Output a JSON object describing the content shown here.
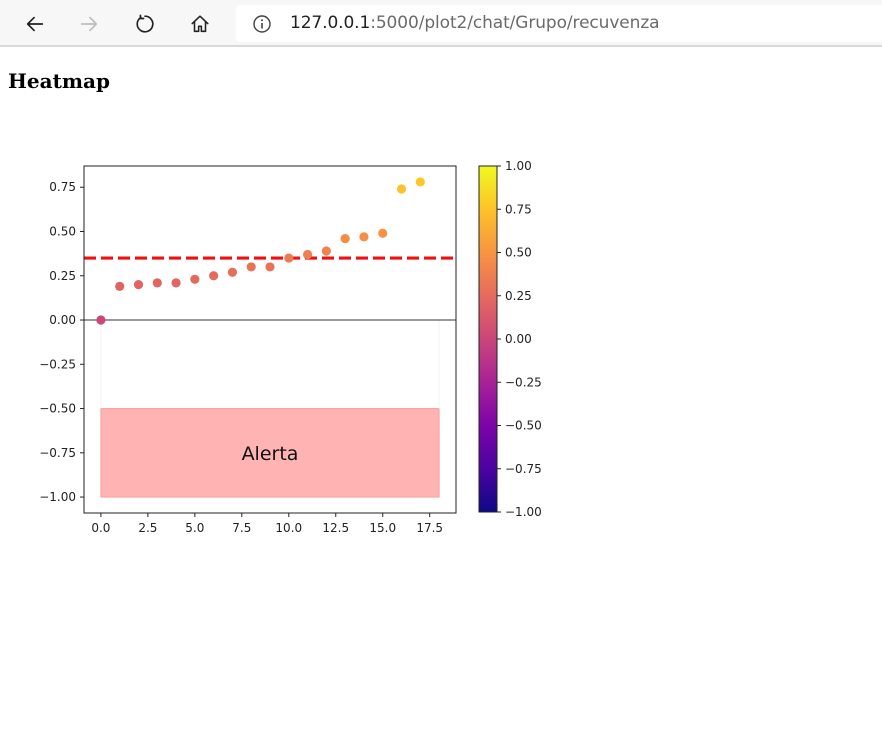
{
  "browser": {
    "url_host": "127.0.0.1",
    "url_rest": ":5000/plot2/chat/Grupo/recuvenza",
    "icons": [
      "back-icon",
      "forward-icon",
      "refresh-icon",
      "home-icon",
      "info-icon"
    ]
  },
  "page": {
    "title": "Heatmap"
  },
  "chart_data": {
    "type": "scatter",
    "title": "",
    "xlabel": "",
    "ylabel": "",
    "xlim": [
      -0.9,
      18.9
    ],
    "ylim": [
      -1.09,
      0.87
    ],
    "x_ticks": [
      0.0,
      2.5,
      5.0,
      7.5,
      10.0,
      12.5,
      15.0,
      17.5
    ],
    "x_tick_labels": [
      "0.0",
      "2.5",
      "5.0",
      "7.5",
      "10.0",
      "12.5",
      "15.0",
      "17.5"
    ],
    "y_ticks": [
      0.75,
      0.5,
      0.25,
      0.0,
      -0.25,
      -0.5,
      -0.75,
      -1.0
    ],
    "y_tick_labels": [
      "0.75",
      "0.50",
      "0.25",
      "0.00",
      "−0.25",
      "−0.50",
      "−0.75",
      "−1.00"
    ],
    "x": [
      0,
      1,
      2,
      3,
      4,
      5,
      6,
      7,
      8,
      9,
      10,
      11,
      12,
      13,
      14,
      15,
      16,
      17
    ],
    "y": [
      0.0,
      0.19,
      0.2,
      0.21,
      0.21,
      0.23,
      0.25,
      0.27,
      0.3,
      0.3,
      0.35,
      0.37,
      0.39,
      0.46,
      0.47,
      0.49,
      0.74,
      0.78
    ],
    "colormap": "plasma",
    "threshold": {
      "y": 0.35,
      "color": "#ee1111",
      "style": "dashed"
    },
    "zero_line": {
      "y": 0.0,
      "color": "#333333"
    },
    "alert_region": {
      "x": [
        0,
        18
      ],
      "y": [
        -1.0,
        -0.5
      ],
      "color": "#ffb3b3",
      "label": "Alerta"
    },
    "colorbar": {
      "range": [
        -1.0,
        1.0
      ],
      "ticks": [
        1.0,
        0.75,
        0.5,
        0.25,
        0.0,
        -0.25,
        -0.5,
        -0.75,
        -1.0
      ],
      "tick_labels": [
        "1.00",
        "0.75",
        "0.50",
        "0.25",
        "0.00",
        "−0.25",
        "−0.50",
        "−0.75",
        "−1.00"
      ]
    }
  }
}
